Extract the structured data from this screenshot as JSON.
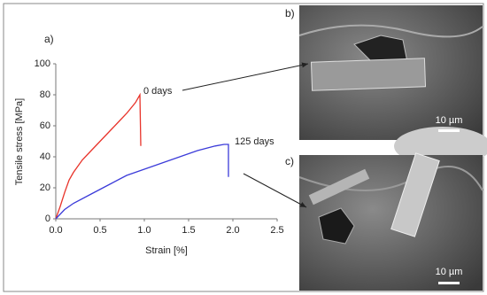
{
  "chart_data": {
    "type": "line",
    "panel_label": "a)",
    "x_label": "Strain [%]",
    "y_label": "Tensile stress [MPa]",
    "xlim": [
      0,
      2.5
    ],
    "xticks": [
      {
        "value": 0,
        "label": "0.0"
      },
      0.5,
      {
        "value": 1,
        "label": "1.0"
      },
      1.5,
      {
        "value": 2,
        "label": "2.0"
      },
      2.5
    ],
    "ylim": [
      0,
      100
    ],
    "yticks": [
      0,
      20,
      40,
      60,
      80,
      100
    ],
    "grid": false,
    "series": [
      {
        "name": "0 days",
        "color": "#e8332a",
        "x": [
          0,
          0.05,
          0.1,
          0.15,
          0.2,
          0.3,
          0.4,
          0.5,
          0.6,
          0.7,
          0.8,
          0.9,
          0.95,
          0.96
        ],
        "values": [
          0,
          8,
          17,
          25,
          30,
          38,
          44,
          50,
          56,
          62,
          68,
          75,
          80,
          47
        ]
      },
      {
        "name": "125 days",
        "color": "#3b3bd9",
        "x": [
          0,
          0.1,
          0.2,
          0.4,
          0.6,
          0.8,
          1.0,
          1.2,
          1.4,
          1.6,
          1.8,
          1.9,
          1.95,
          1.95
        ],
        "values": [
          0,
          6,
          10,
          16,
          22,
          28,
          32,
          36,
          40,
          44,
          47,
          48,
          48,
          27
        ]
      }
    ]
  },
  "images": [
    {
      "label": "b)",
      "scale_bar": "10 µm"
    },
    {
      "label": "c)",
      "scale_bar": "10 µm"
    }
  ]
}
